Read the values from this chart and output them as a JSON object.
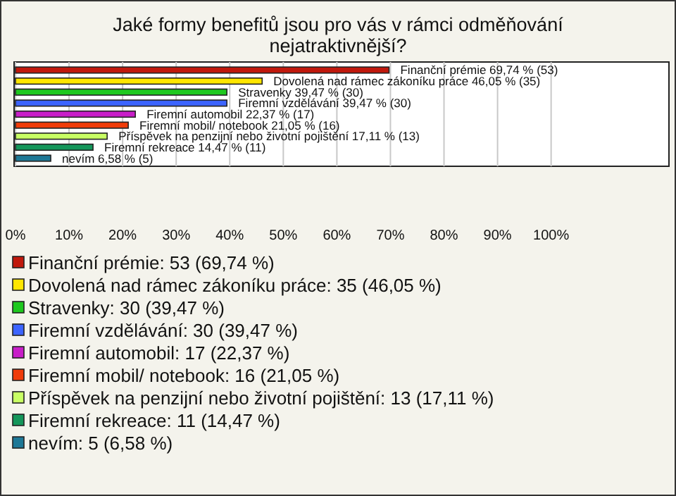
{
  "chart_data": {
    "type": "bar",
    "orientation": "horizontal",
    "title": "Jaké formy benefitů jsou pro vás v rámci odměňování nejatraktivnější?",
    "categories": [
      "Finanční prémie",
      "Dovolená nad rámec zákoníku práce",
      "Stravenky",
      "Firemní vzdělávání",
      "Firemní automobil",
      "Firemní mobil/ notebook",
      "Příspěvek na penzijní nebo životní pojištění",
      "Firemní rekreace",
      "nevím"
    ],
    "values": [
      69.74,
      46.05,
      39.47,
      39.47,
      22.37,
      21.05,
      17.11,
      14.47,
      6.58
    ],
    "colors": [
      "#c0180c",
      "#ffe600",
      "#1ec81e",
      "#3c64ff",
      "#c81ec8",
      "#f03c0a",
      "#c8ff64",
      "#14965a",
      "#1e7896"
    ],
    "value_labels": [
      "69,74 % (53)",
      "46,05 % (35)",
      "39,47 % (30)",
      "39,47 % (30)",
      "22,37 % (17)",
      "21,05 % (16)",
      "17,11 % (13)",
      "14,47 % (11)",
      "6,58 % (5)"
    ],
    "xlim": [
      0,
      122
    ],
    "xticks": [
      {
        "value": 0,
        "label": "0%"
      },
      {
        "value": 10,
        "label": "10%"
      },
      {
        "value": 20,
        "label": "20%"
      },
      {
        "value": 30,
        "label": "30%"
      },
      {
        "value": 40,
        "label": "40%"
      },
      {
        "value": 50,
        "label": "50%"
      },
      {
        "value": 60,
        "label": "60%"
      },
      {
        "value": 70,
        "label": "70%"
      },
      {
        "value": 80,
        "label": "80%"
      },
      {
        "value": 90,
        "label": "90%"
      },
      {
        "value": 100,
        "label": "100%"
      }
    ],
    "grid": "x",
    "annotations": [
      "Finanční prémie: 53 (69,74 %)",
      "Dovolená nad rámec zákoníku práce: 35 (46,05 %)",
      "Stravenky: 30 (39,47 %)",
      "Firemní vzdělávání: 30 (39,47 %)",
      "Firemní automobil: 17 (22,37 %)",
      "Firemní mobil/ notebook: 16 (21,05 %)",
      "Příspěvek na penzijní nebo životní pojištění: 13 (17,11 %)",
      "Firemní rekreace: 11 (14,47 %)",
      "nevím: 5 (6,58 %)"
    ]
  }
}
